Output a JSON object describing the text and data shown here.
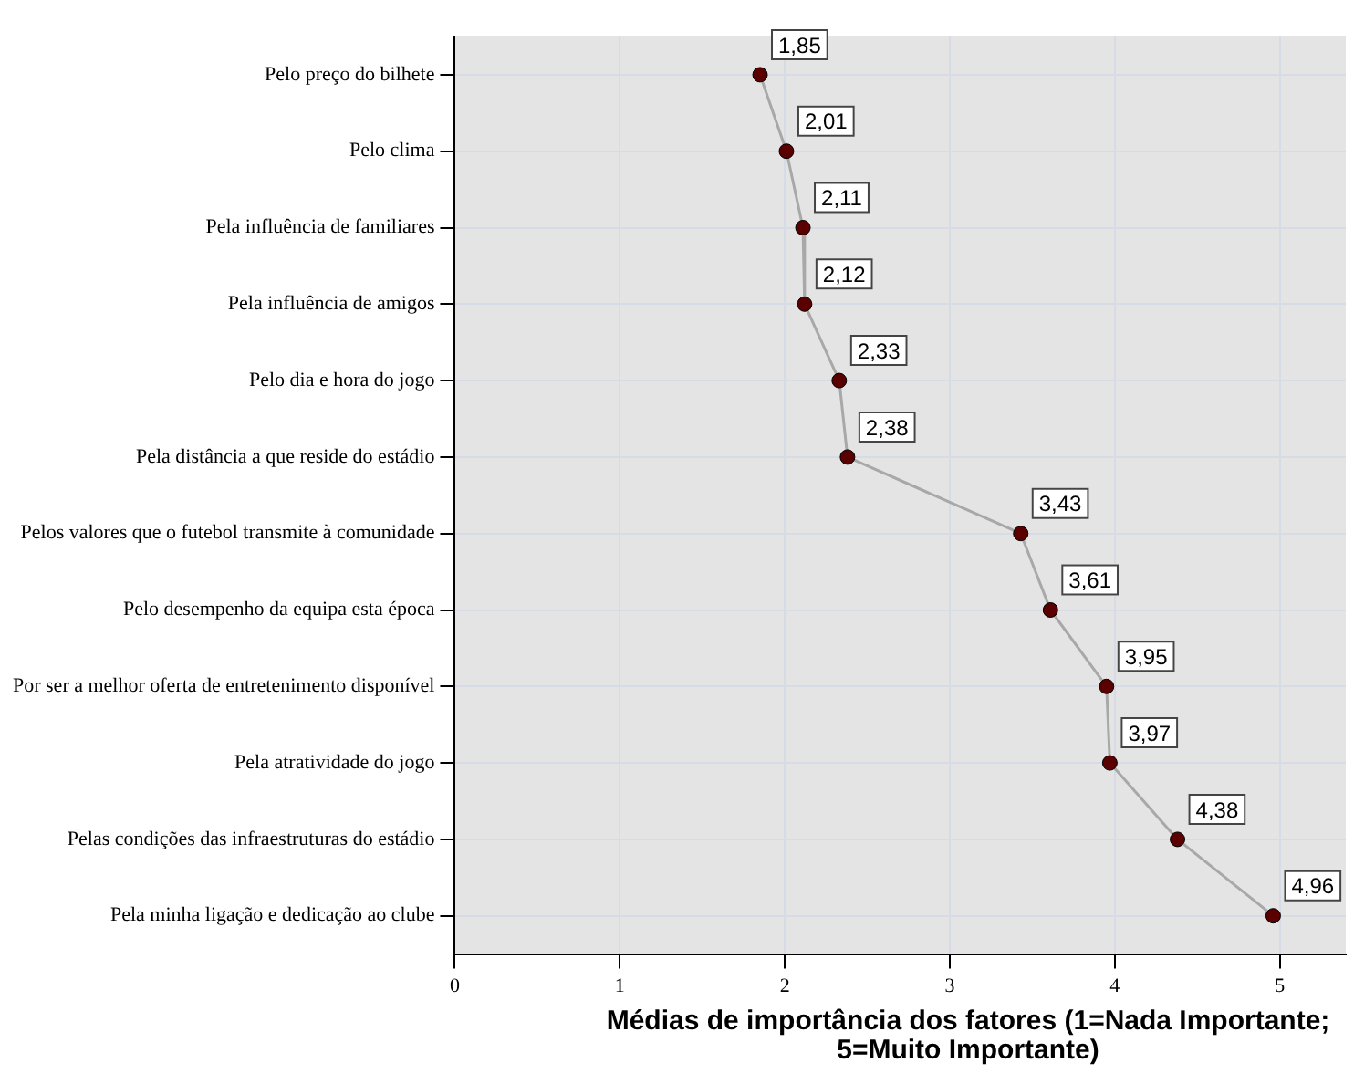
{
  "chart_data": {
    "type": "line",
    "orientation": "horizontal",
    "xlabel": "Médias de importância dos fatores (1=Nada Importante; 5=Muito Importante)",
    "categories": [
      "Pelo preço do bilhete",
      "Pelo clima",
      "Pela influência de familiares",
      "Pela influência de amigos",
      "Pelo dia e hora do jogo",
      "Pela distância a que reside do estádio",
      "Pelos valores que o futebol transmite à comunidade",
      "Pelo desempenho da equipa esta época",
      "Por ser a melhor oferta de entretenimento disponível",
      "Pela atratividade do jogo",
      "Pelas condições das infraestruturas do estádio",
      "Pela minha ligação e dedicação ao clube"
    ],
    "series": [
      {
        "color": "#5a0000",
        "values": [
          1.85,
          2.01,
          2.11,
          2.12,
          2.33,
          2.38,
          3.43,
          3.61,
          3.95,
          3.97,
          4.38,
          4.96
        ],
        "value_labels": [
          "1,85",
          "2,01",
          "2,11",
          "2,12",
          "2,33",
          "2,38",
          "3,43",
          "3,61",
          "3,95",
          "3,97",
          "4,38",
          "4,96"
        ]
      }
    ],
    "xlim": [
      0,
      5.4
    ],
    "xticks": [
      0,
      1,
      2,
      3,
      4,
      5
    ],
    "grid": true,
    "legend": false,
    "marker": "circle",
    "line_style": "solid"
  }
}
